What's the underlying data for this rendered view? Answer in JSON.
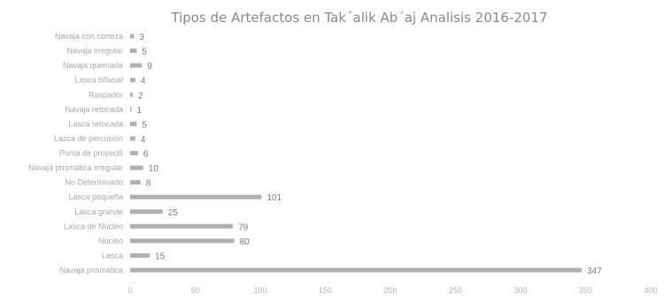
{
  "colors": {
    "bar": "#b0b0b0",
    "background": "#ffffff"
  },
  "chart_data": {
    "type": "bar",
    "orientation": "horizontal",
    "title": "Tipos de Artefactos en Tak´alik Ab´aj Analisis 2016-2017",
    "categories": [
      "Navaja prismática",
      "Lasca",
      "Núcleo",
      "Lasca de Núcleo",
      "Lasca grande",
      "Lasca pequeña",
      "No Determinado",
      "Navaja prismática irregular",
      "Punta de proyectil",
      "Lasca de percusión",
      "Lasca retocada",
      "Navaja retocada",
      "Raspador",
      "Lasca bifacial",
      "Navaja quemada",
      "Navaja irregular",
      "Navaja con corteza"
    ],
    "values": [
      347,
      15,
      80,
      79,
      25,
      101,
      8,
      10,
      6,
      4,
      5,
      1,
      2,
      4,
      9,
      5,
      3
    ],
    "value_labels": [
      "347",
      "15",
      "80",
      "79",
      "25",
      "101",
      "8",
      "10",
      "6",
      "4",
      "5",
      "1",
      "2",
      "4",
      "9",
      "5",
      "3"
    ],
    "xticks": [
      0,
      50,
      100,
      150,
      200,
      250,
      300,
      350,
      400
    ],
    "xtick_labels": [
      "0",
      "50",
      "100",
      "150",
      "200",
      "250",
      "300",
      "350",
      "400"
    ],
    "xlim": [
      0,
      400
    ],
    "grid": false,
    "legend": "none"
  }
}
